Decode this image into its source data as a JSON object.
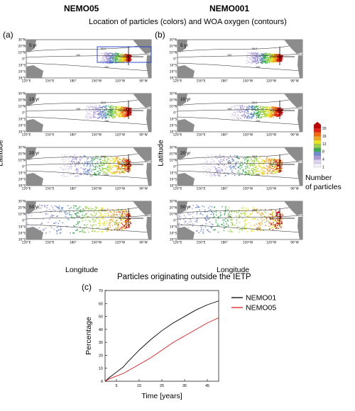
{
  "header": {
    "left_title": "NEMO05",
    "right_title": "NEMO001",
    "figure_title": "Location of particles (colors) and WOA oxygen (contours)"
  },
  "panels": {
    "a_label": "(a)",
    "b_label": "(b)",
    "c_label": "(c)"
  },
  "map_axes": {
    "lat_ticks": [
      "30°N",
      "20°N",
      "10°N",
      "0°",
      "10°S",
      "20°S",
      "30°S"
    ],
    "lon_ticks": [
      "120°E",
      "150°E",
      "180°",
      "150°W",
      "120°W",
      "90°W"
    ],
    "xlabel": "Longitude",
    "ylabel": "Latitude"
  },
  "map_panels": [
    {
      "model": "NEMO05",
      "year_label": "5 yr"
    },
    {
      "model": "NEMO001",
      "year_label": "5 yr"
    },
    {
      "model": "NEMO05",
      "year_label": "10 yr"
    },
    {
      "model": "NEMO001",
      "year_label": "10 yr"
    },
    {
      "model": "NEMO05",
      "year_label": "20 yr"
    },
    {
      "model": "NEMO001",
      "year_label": "20 yr"
    },
    {
      "model": "NEMO05",
      "year_label": "50 yr"
    },
    {
      "model": "NEMO001",
      "year_label": "50 yr"
    }
  ],
  "contour_labels": [
    "50.0",
    "100",
    "150"
  ],
  "colorbar": {
    "ticks": [
      "20",
      "16",
      "12",
      "8",
      "4",
      "1"
    ],
    "label_line1": "Number",
    "label_line2": "of particles",
    "colors": [
      "#c00000",
      "#e82010",
      "#f26a10",
      "#f7a51c",
      "#e8e520",
      "#9bd247",
      "#3eaa56",
      "#6e8bd0",
      "#a99ad8",
      "#dcd4ee",
      "#f3eff9"
    ]
  },
  "chart_data": {
    "type": "line",
    "title": "Particles originating outside the IETP",
    "xlabel": "Time [years]",
    "ylabel": "Percentage",
    "xlim": [
      0,
      50
    ],
    "ylim": [
      0,
      70
    ],
    "xticks": [
      5,
      15,
      25,
      35,
      45
    ],
    "yticks": [
      0,
      10,
      20,
      30,
      40,
      50,
      60,
      70
    ],
    "series": [
      {
        "name": "NEMO01",
        "color": "#000000",
        "x": [
          0,
          2,
          5,
          8,
          10,
          15,
          20,
          25,
          30,
          35,
          40,
          45,
          50
        ],
        "y": [
          0,
          3,
          7,
          11,
          15,
          24,
          32,
          39,
          45,
          50,
          55,
          59,
          62
        ]
      },
      {
        "name": "NEMO05",
        "color": "#e02020",
        "x": [
          0,
          2,
          5,
          8,
          10,
          15,
          20,
          25,
          30,
          35,
          40,
          45,
          50
        ],
        "y": [
          0,
          2,
          4,
          6,
          8,
          13,
          18,
          24,
          30,
          35,
          40,
          45,
          49
        ]
      }
    ]
  }
}
